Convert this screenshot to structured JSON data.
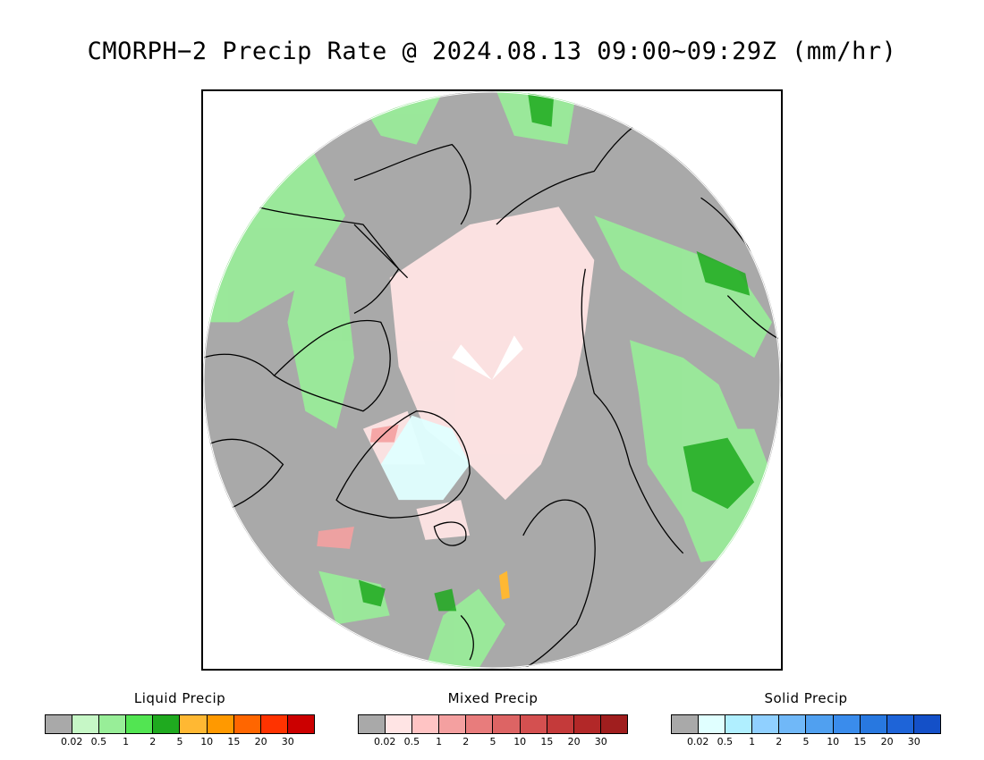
{
  "title": "CMORPH−2 Precip Rate @ 2024.08.13 09:00~09:29Z (mm/hr)",
  "map": {
    "projection": "north polar stereographic",
    "background_color": "#a9a9a9",
    "coastline_color": "#000000"
  },
  "legends": [
    {
      "id": "liquid",
      "title": "Liquid Precip",
      "colors": [
        "#a9a9a9",
        "#c6f7c6",
        "#98ee98",
        "#52e552",
        "#1faa1f",
        "#ffb833",
        "#ff9900",
        "#ff6600",
        "#ff3300",
        "#cc0000"
      ],
      "ticks": [
        "0.02",
        "0.5",
        "1",
        "2",
        "5",
        "10",
        "15",
        "20",
        "30"
      ]
    },
    {
      "id": "mixed",
      "title": "Mixed Precip",
      "colors": [
        "#a9a9a9",
        "#ffe4e4",
        "#ffc4c4",
        "#f4a0a0",
        "#e87c7c",
        "#dd6464",
        "#d45050",
        "#c43a3a",
        "#b22828",
        "#a01e1e"
      ],
      "ticks": [
        "0.02",
        "0.5",
        "1",
        "2",
        "5",
        "10",
        "15",
        "20",
        "30"
      ]
    },
    {
      "id": "solid",
      "title": "Solid Precip",
      "colors": [
        "#a9a9a9",
        "#e0ffff",
        "#b0efff",
        "#90d0ff",
        "#70b8f8",
        "#50a0f0",
        "#3a8cec",
        "#2878e0",
        "#1e64d8",
        "#1450c8"
      ],
      "ticks": [
        "0.02",
        "0.5",
        "1",
        "2",
        "5",
        "10",
        "15",
        "20",
        "30"
      ]
    }
  ]
}
